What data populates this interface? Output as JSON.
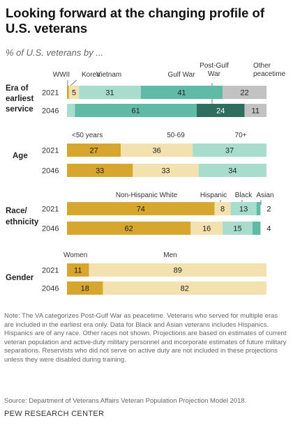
{
  "title": "Looking forward at the changing profile of U.S. veterans",
  "subtitle": "% of U.S. veterans by ...",
  "note": "Note: The VA categorizes Post-Gulf War as peacetime. Veterans who served for multiple eras are included in the earliest era only. Data for Black and Asian veterans includes Hispanics. Hispanics are of any race. Other races not shown. Projections are based on estimates of current veteran population and active-duty military personnel and incorporate estimates of future military separations. Reservists who did not serve on active duty are not included in these projections unless they were disabled during training.",
  "source": "Source: Department of Veterans Affairs Veteran Population Projection Model 2018.",
  "credit": "PEW RESEARCH CENTER",
  "chart_data": {
    "type": "bar",
    "orientation": "horizontal",
    "stacked": true,
    "xlim": [
      0,
      100
    ],
    "groups": [
      {
        "label": "Era of earliest service",
        "categories": [
          "2021",
          "2046"
        ],
        "series": [
          {
            "name": "WWII",
            "values": [
              1,
              null
            ],
            "color": "#d7a62f",
            "labels": [
              "",
              ""
            ]
          },
          {
            "name": "Korea",
            "values": [
              5,
              null
            ],
            "color": "#f3e2b0",
            "labels": [
              "5",
              ""
            ]
          },
          {
            "name": "Vietnam",
            "values": [
              31,
              4
            ],
            "color": "#a8dccd",
            "labels": [
              "31",
              "4"
            ]
          },
          {
            "name": "Gulf War",
            "values": [
              41,
              61
            ],
            "color": "#5fbba5",
            "labels": [
              "41",
              "61"
            ]
          },
          {
            "name": "Post-Gulf War",
            "values": [
              null,
              24
            ],
            "color": "#2d6e5f",
            "labels": [
              "",
              "24"
            ]
          },
          {
            "name": "Other peacetime",
            "values": [
              22,
              11
            ],
            "color": "#c2c2c2",
            "labels": [
              "22",
              "11"
            ]
          }
        ]
      },
      {
        "label": "Age",
        "categories": [
          "2021",
          "2046"
        ],
        "series": [
          {
            "name": "<50 years",
            "values": [
              27,
              33
            ],
            "color": "#d7a62f",
            "labels": [
              "27",
              "33"
            ]
          },
          {
            "name": "50-69",
            "values": [
              36,
              33
            ],
            "color": "#f3e2b0",
            "labels": [
              "36",
              "33"
            ]
          },
          {
            "name": "70+",
            "values": [
              37,
              34
            ],
            "color": "#a8dccd",
            "labels": [
              "37",
              "34"
            ]
          }
        ]
      },
      {
        "label": "Race/ ethnicity",
        "categories": [
          "2021",
          "2046"
        ],
        "series": [
          {
            "name": "Non-Hispanic White",
            "values": [
              74,
              62
            ],
            "color": "#d7a62f",
            "labels": [
              "74",
              "62"
            ]
          },
          {
            "name": "Hispanic",
            "values": [
              8,
              16
            ],
            "color": "#f3e2b0",
            "labels": [
              "8",
              "16"
            ]
          },
          {
            "name": "Black",
            "values": [
              13,
              15
            ],
            "color": "#a8dccd",
            "labels": [
              "13",
              "15"
            ]
          },
          {
            "name": "Asian",
            "values": [
              2,
              4
            ],
            "color": "#5fbba5",
            "labels": [
              "2",
              "4"
            ]
          }
        ]
      },
      {
        "label": "Gender",
        "categories": [
          "2021",
          "2046"
        ],
        "series": [
          {
            "name": "Women",
            "values": [
              11,
              18
            ],
            "color": "#d7a62f",
            "labels": [
              "11",
              "18"
            ]
          },
          {
            "name": "Men",
            "values": [
              89,
              82
            ],
            "color": "#f3e2b0",
            "labels": [
              "89",
              "82"
            ]
          }
        ]
      }
    ]
  }
}
